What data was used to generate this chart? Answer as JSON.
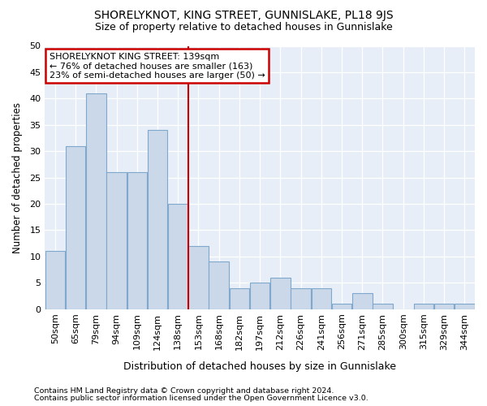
{
  "title": "SHORELYKNOT, KING STREET, GUNNISLAKE, PL18 9JS",
  "subtitle": "Size of property relative to detached houses in Gunnislake",
  "xlabel": "Distribution of detached houses by size in Gunnislake",
  "ylabel": "Number of detached properties",
  "categories": [
    "50sqm",
    "65sqm",
    "79sqm",
    "94sqm",
    "109sqm",
    "124sqm",
    "138sqm",
    "153sqm",
    "168sqm",
    "182sqm",
    "197sqm",
    "212sqm",
    "226sqm",
    "241sqm",
    "256sqm",
    "271sqm",
    "285sqm",
    "300sqm",
    "315sqm",
    "329sqm",
    "344sqm"
  ],
  "values": [
    11,
    31,
    41,
    26,
    26,
    34,
    20,
    12,
    9,
    4,
    5,
    6,
    4,
    4,
    1,
    3,
    1,
    0,
    1,
    1,
    1
  ],
  "bar_color": "#cad8ea",
  "bar_edge_color": "#7fa8cc",
  "background_color": "#ffffff",
  "plot_bg_color": "#e8eef8",
  "grid_color": "#ffffff",
  "property_line_index": 6,
  "annotation_title": "SHORELYKNOT KING STREET: 139sqm",
  "annotation_line1": "← 76% of detached houses are smaller (163)",
  "annotation_line2": "23% of semi-detached houses are larger (50) →",
  "annotation_box_color": "#ffffff",
  "annotation_box_edge": "#cc0000",
  "vline_color": "#cc0000",
  "footer1": "Contains HM Land Registry data © Crown copyright and database right 2024.",
  "footer2": "Contains public sector information licensed under the Open Government Licence v3.0.",
  "ylim": [
    0,
    50
  ],
  "yticks": [
    0,
    5,
    10,
    15,
    20,
    25,
    30,
    35,
    40,
    45,
    50
  ]
}
